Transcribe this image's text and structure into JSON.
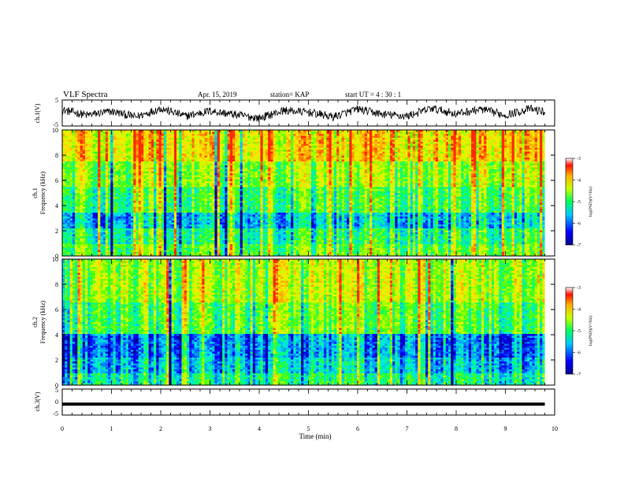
{
  "header": {
    "title": "VLF Spectra",
    "date": "Apr. 15, 2019",
    "station": "station= KAP",
    "start": "start  UT  =   4 : 30 : 1"
  },
  "colors": {
    "spec_low": "#0000b4",
    "spec_mid": "#00e000",
    "spec_high": "#ff2000",
    "waveform": "#000000"
  },
  "chart_data": [
    {
      "type": "line",
      "name": "ch1-waveform",
      "ylabel": "ch.1(V)",
      "ylim": [
        -5,
        5
      ],
      "yticks": [
        "5",
        "-5"
      ],
      "xlim": [
        0,
        10
      ],
      "x": [
        0,
        0.5,
        1,
        1.5,
        2,
        2.5,
        3,
        3.5,
        4,
        4.5,
        5,
        5.5,
        6,
        6.5,
        7,
        7.5,
        8,
        8.5,
        9,
        9.5,
        9.8
      ],
      "y": [
        1.2,
        -0.8,
        0.6,
        -1.5,
        1.8,
        -1.2,
        0.8,
        -0.6,
        -2.0,
        1.0,
        0.3,
        -1.5,
        1.5,
        -0.5,
        -1.2,
        1.8,
        -0.3,
        1.4,
        -0.8,
        1.6,
        0.4
      ]
    },
    {
      "type": "heatmap",
      "name": "ch1-spectrogram",
      "ylabel": "ch.1\nFrequency  (kHz)",
      "yticks": [
        "0",
        "2",
        "4",
        "6",
        "8",
        "10"
      ],
      "ylim": [
        0,
        10
      ],
      "xlim": [
        0,
        10
      ],
      "colorbar": {
        "range": [
          -7,
          -3
        ],
        "ticks": [
          "-3",
          "-4",
          "-5",
          "-6",
          "-7"
        ],
        "label": "log(PSD)(V²/Hz)"
      }
    },
    {
      "type": "heatmap",
      "name": "ch2-spectrogram",
      "ylabel": "ch.2\nFrequency  (kHz)",
      "yticks": [
        "0",
        "2",
        "4",
        "6",
        "8",
        "10"
      ],
      "ylim": [
        0,
        10
      ],
      "xlim": [
        0,
        10
      ],
      "colorbar": {
        "range": [
          -7,
          -3
        ],
        "ticks": [
          "-3",
          "-4",
          "-5",
          "-6",
          "-7"
        ],
        "label": "log(PSD)(V²/Hz)"
      }
    },
    {
      "type": "line",
      "name": "ch3-waveform",
      "ylabel": "ch.3(V)",
      "ylim": [
        -5,
        5
      ],
      "yticks": [
        "5",
        "0",
        "-5"
      ],
      "xlim": [
        0,
        10
      ],
      "x": [
        0,
        9.8
      ],
      "y": [
        -0.8,
        -0.8
      ]
    }
  ],
  "xaxis": {
    "label": "Time  (min)",
    "ticks": [
      "0",
      "1",
      "2",
      "3",
      "4",
      "5",
      "6",
      "7",
      "8",
      "9",
      "10"
    ]
  }
}
